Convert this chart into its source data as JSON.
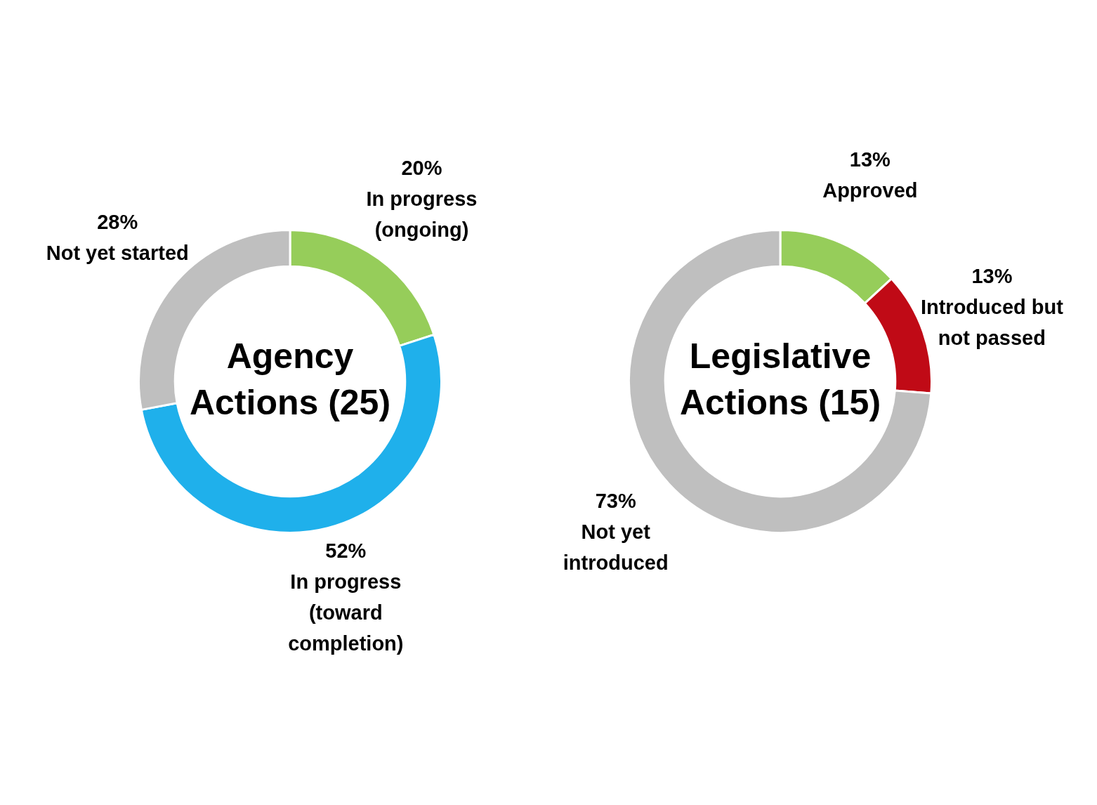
{
  "chart_data": [
    {
      "type": "donut",
      "title": "Agency Actions (25)",
      "categories": [
        "In progress (ongoing)",
        "In progress (toward completion)",
        "Not yet started"
      ],
      "values": [
        20,
        52,
        28
      ],
      "colors": [
        "#96cd5a",
        "#1fb0eb",
        "#bfbfbf"
      ],
      "value_labels": [
        "20%",
        "52%",
        "28%"
      ]
    },
    {
      "type": "donut",
      "title": "Legislative Actions (15)",
      "categories": [
        "Approved",
        "Introduced but not passed",
        "Not yet introduced"
      ],
      "values": [
        13,
        13,
        73
      ],
      "colors": [
        "#96cd5a",
        "#c00a16",
        "#bfbfbf"
      ],
      "value_labels": [
        "13%",
        "13%",
        "73%"
      ]
    }
  ]
}
